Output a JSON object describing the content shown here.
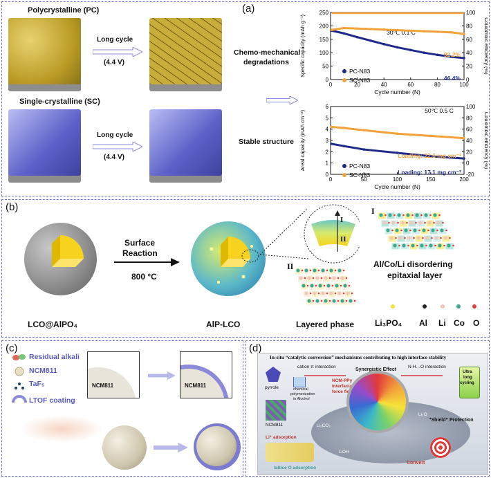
{
  "panel_a": {
    "label": "(a)",
    "pc_title": "Polycrystalline (PC)",
    "sc_title": "Single-crystalline (SC)",
    "arrow1_label": "Long cycle",
    "arrow1_voltage": "(4.4 V)",
    "arrow2_label": "Long cycle",
    "arrow2_voltage": "(4.4 V)",
    "degrade_text_1": "Chemo-mechanical",
    "degrade_text_2": "degradations",
    "stable_text": "Stable structure"
  },
  "chart_data": [
    {
      "type": "line",
      "title": "30℃ 0.1 C",
      "xlabel": "Cycle number (N)",
      "ylabel": "Specific capacity (mAh g⁻¹)",
      "ylabel_right": "Coulombic efficiency (%)",
      "xlim": [
        0,
        100
      ],
      "ylim": [
        0,
        250
      ],
      "ylim_right": [
        0,
        100
      ],
      "x_ticks": [
        "0",
        "20",
        "40",
        "60",
        "80",
        "100"
      ],
      "y_ticks": [
        "0",
        "50",
        "100",
        "150",
        "200",
        "250"
      ],
      "y_right_ticks": [
        "0",
        "20",
        "40",
        "60",
        "80",
        "100"
      ],
      "series": [
        {
          "name": "PC-N83",
          "color": "#1f2a8a",
          "x": [
            1,
            10,
            20,
            30,
            40,
            50,
            60,
            70,
            80,
            90,
            100
          ],
          "values": [
            182,
            172,
            158,
            145,
            132,
            120,
            110,
            100,
            92,
            85,
            80
          ]
        },
        {
          "name": "SC-N83",
          "color": "#f2a23a",
          "x": [
            1,
            10,
            20,
            30,
            40,
            50,
            60,
            70,
            80,
            90,
            100
          ],
          "values": [
            185,
            192,
            190,
            188,
            186,
            184,
            182,
            180,
            178,
            176,
            170
          ]
        },
        {
          "name": "CE",
          "color": "#f2a23a",
          "x": [
            1,
            100
          ],
          "values": [
            99,
            99
          ]
        }
      ],
      "annotations": [
        "92.2%",
        "46.4%"
      ]
    },
    {
      "type": "line",
      "title": "50℃ 0.5 C",
      "xlabel": "Cycle number (N)",
      "ylabel": "Areal capacity (mAh cm⁻²)",
      "ylabel_right": "Coulombic efficiency (%)",
      "xlim": [
        0,
        200
      ],
      "ylim": [
        0,
        6
      ],
      "ylim_right": [
        -20,
        100
      ],
      "x_ticks": [
        "0",
        "50",
        "100",
        "150",
        "200"
      ],
      "y_ticks": [
        "0",
        "1",
        "2",
        "3",
        "4",
        "5",
        "6"
      ],
      "y_right_ticks": [
        "-20",
        "0",
        "20",
        "40",
        "60",
        "80",
        "100"
      ],
      "series": [
        {
          "name": "SC-N83",
          "color": "#f2a23a",
          "x": [
            1,
            20,
            50,
            100,
            150,
            200
          ],
          "values": [
            4.2,
            4.1,
            3.9,
            3.6,
            3.4,
            3.2
          ]
        },
        {
          "name": "PC-N83",
          "color": "#1f2a8a",
          "x": [
            1,
            20,
            50,
            100,
            150,
            200
          ],
          "values": [
            2.7,
            2.5,
            2.2,
            1.9,
            1.6,
            1.4
          ]
        }
      ],
      "annotations": [
        "Loading: 22.6 mg cm⁻²",
        "Loading: 17.1 mg cm⁻²"
      ]
    }
  ],
  "panel_b": {
    "label": "(b)",
    "surface_reaction": "Surface",
    "reaction": "Reaction",
    "temperature": "800 °C",
    "lco_alpo4": "LCO@AlPO₄",
    "aip_lco": "AlP-LCO",
    "layered_phase": "Layered phase",
    "epitaxial_1": "Al/Co/Li disordering",
    "epitaxial_2": "epitaxial layer",
    "roman_1": "I",
    "roman_2": "II",
    "roman_1b": "I",
    "roman_2b": "II",
    "legend": [
      "Li₃PO₄",
      "Al",
      "Li",
      "Co",
      "O"
    ]
  },
  "panel_c": {
    "label": "(c)",
    "legend": [
      "Residual alkali",
      "NCM811",
      "TaF₅",
      "LTOF coating"
    ],
    "inset_1": "NCM811",
    "inset_2": "NCM811"
  },
  "panel_d": {
    "label": "(d)",
    "title": "In-situ “catalytic conversion” mechanisms contributing to high interface stability",
    "cation_pi": "cation-π interaction",
    "synergistic": "Synergistic Effect",
    "nho": "N-H…O interaction",
    "pyrrole": "pyrrole",
    "ncm_ppy_1": "NCM-PPy",
    "ncm_ppy_2": "interfacial",
    "ncm_ppy_3": "force field",
    "chem_1": "chemical",
    "chem_2": "polymerization",
    "chem_3": "in Alcohol",
    "ncm811": "NCM811",
    "li_adsorption": "Li⁺ adsorption",
    "lattice_o": "lattice O adsorption",
    "ultra_1": "Ultra",
    "ultra_2": "long",
    "ultra_3": "cycling",
    "shield": "“Shield” Protection",
    "convert": "Convert",
    "li2o": "Li₂O",
    "li2co3": "Li₂CO₃",
    "lioh": "LiOH"
  }
}
